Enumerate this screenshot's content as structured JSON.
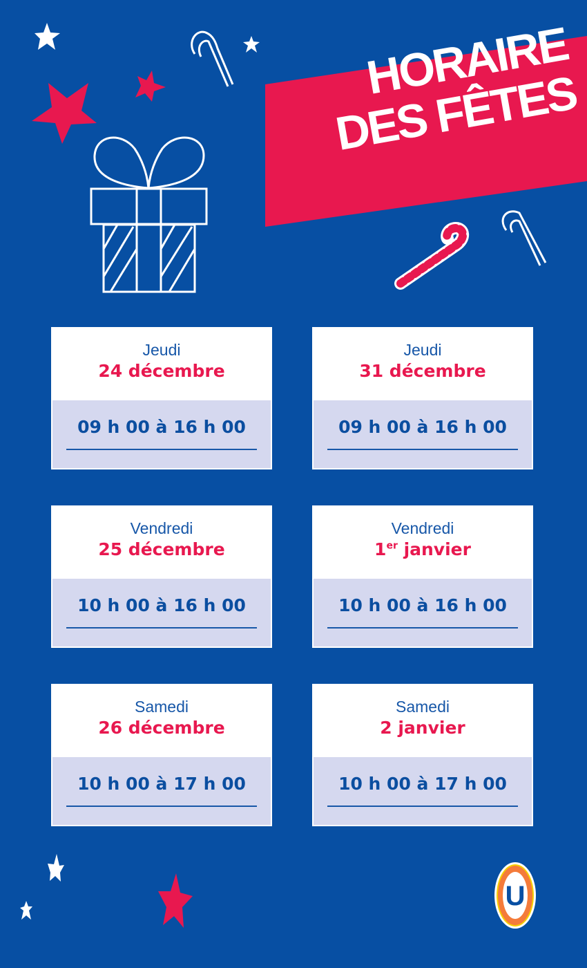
{
  "title": {
    "line1": "HORAIRE",
    "line2": "DES FÊTES"
  },
  "colors": {
    "background": "#074fa3",
    "accent": "#e8184f",
    "card_bottom": "#d5d8ef"
  },
  "schedule": [
    {
      "day": "Jeudi",
      "date": "24 décembre",
      "hours": "09 h 00 à 16 h 00"
    },
    {
      "day": "Jeudi",
      "date": "31 décembre",
      "hours": "09 h 00 à 16 h 00"
    },
    {
      "day": "Vendredi",
      "date": "25 décembre",
      "hours": "10 h 00 à 16 h 00"
    },
    {
      "day": "Vendredi",
      "date_num": "1",
      "date_sup": "er",
      "date_rest": " janvier",
      "hours": "10 h 00 à 16 h 00"
    },
    {
      "day": "Samedi",
      "date": "26 décembre",
      "hours": "10 h 00 à 17 h 00"
    },
    {
      "day": "Samedi",
      "date": "2 janvier",
      "hours": "10 h 00 à 17 h 00"
    }
  ],
  "logo": {
    "letter": "U"
  }
}
